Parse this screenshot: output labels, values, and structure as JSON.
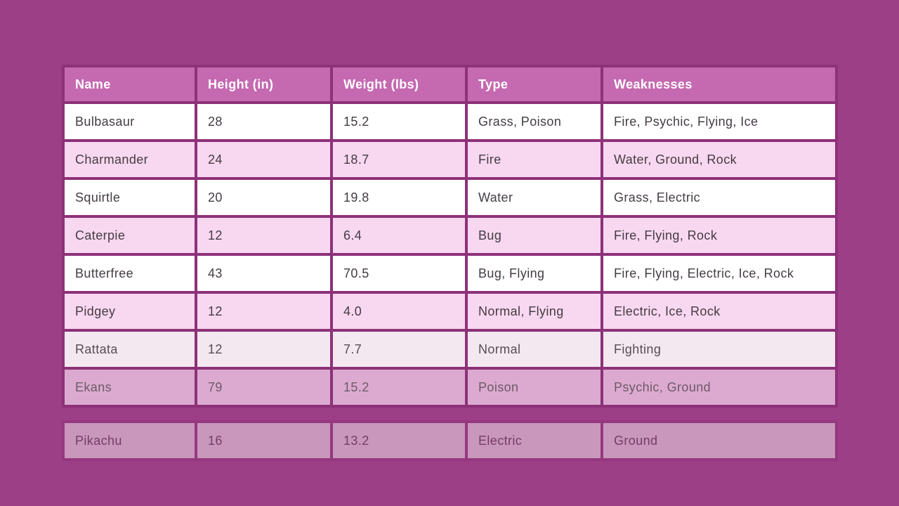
{
  "colors": {
    "page_background": "#9d3f86",
    "grid_border": "#8d3179",
    "header_background": "#c569b1",
    "header_text": "#ffffff",
    "row_white": "#ffffff",
    "row_pink": "#f8d7f0",
    "body_text": "#453c44"
  },
  "chart_data": {
    "type": "table",
    "title": "",
    "columns": [
      "Name",
      "Height (in)",
      "Weight (lbs)",
      "Type",
      "Weaknesses"
    ],
    "rows": [
      {
        "name": "Bulbasaur",
        "height": "28",
        "weight": "15.2",
        "type": "Grass, Poison",
        "weaknesses": "Fire, Psychic, Flying, Ice"
      },
      {
        "name": "Charmander",
        "height": "24",
        "weight": "18.7",
        "type": "Fire",
        "weaknesses": "Water, Ground, Rock"
      },
      {
        "name": "Squirtle",
        "height": "20",
        "weight": "19.8",
        "type": "Water",
        "weaknesses": "Grass, Electric"
      },
      {
        "name": "Caterpie",
        "height": "12",
        "weight": "6.4",
        "type": "Bug",
        "weaknesses": "Fire, Flying, Rock"
      },
      {
        "name": "Butterfree",
        "height": "43",
        "weight": "70.5",
        "type": "Bug, Flying",
        "weaknesses": "Fire, Flying, Electric, Ice, Rock"
      },
      {
        "name": "Pidgey",
        "height": "12",
        "weight": "4.0",
        "type": "Normal, Flying",
        "weaknesses": "Electric, Ice, Rock"
      },
      {
        "name": "Rattata",
        "height": "12",
        "weight": "7.7",
        "type": "Normal",
        "weaknesses": "Fighting"
      },
      {
        "name": "Ekans",
        "height": "79",
        "weight": "15.2",
        "type": "Poison",
        "weaknesses": "Psychic, Ground"
      },
      {
        "name": "Pikachu",
        "height": "16",
        "weight": "13.2",
        "type": "Electric",
        "weaknesses": "Ground"
      }
    ]
  }
}
